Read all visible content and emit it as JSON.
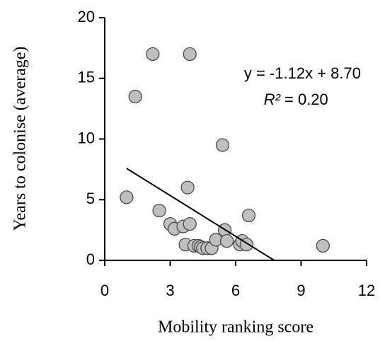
{
  "chart_data": {
    "type": "scatter",
    "x_label": "Mobility ranking score",
    "y_label": "Years to colonise (average)",
    "x": [
      1.0,
      1.4,
      2.2,
      2.5,
      3.0,
      3.2,
      3.6,
      3.7,
      3.8,
      3.9,
      3.9,
      4.1,
      4.3,
      4.4,
      4.5,
      4.7,
      4.9,
      5.1,
      5.4,
      5.5,
      5.6,
      6.2,
      6.3,
      6.5,
      6.6,
      10.0
    ],
    "values": [
      5.2,
      13.5,
      17.0,
      4.1,
      3.0,
      2.6,
      2.8,
      1.3,
      6.0,
      3.0,
      17.0,
      1.2,
      1.2,
      1.1,
      1.0,
      1.0,
      1.0,
      1.7,
      9.5,
      2.5,
      1.6,
      1.3,
      1.6,
      1.3,
      3.7,
      1.2
    ],
    "color": "#bfbfbf",
    "trendline": {
      "x": [
        1.0,
        7.77
      ],
      "y": [
        7.58,
        0
      ]
    },
    "equation": "y = -1.12x + 8.70",
    "r2_symbol": "R²",
    "r2_text": "= 0.20",
    "xlim": [
      0,
      12
    ],
    "xticks": [
      0,
      3,
      6,
      9,
      12
    ],
    "ylim": [
      0,
      20
    ],
    "yticks": [
      0,
      5,
      10,
      15,
      20
    ]
  }
}
